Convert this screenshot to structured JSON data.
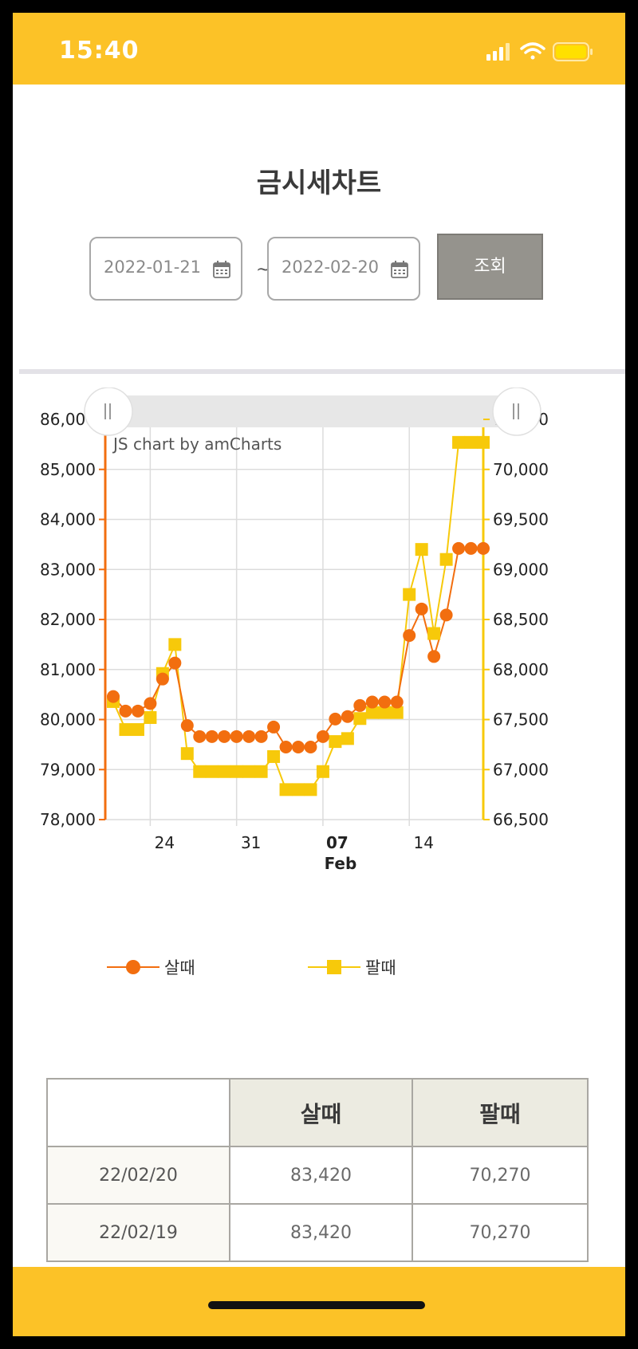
{
  "status_bar": {
    "time": "15:40"
  },
  "page_title": "금시세차트",
  "filter": {
    "start_date": "2022-01-21",
    "end_date": "2022-02-20",
    "separator": "~",
    "query_label": "조회"
  },
  "chart_credit": "JS chart by amCharts",
  "colors": {
    "accent": "#fcc227",
    "buy": "#f26e0f",
    "sell": "#f7c90a",
    "button": "#95938d"
  },
  "chart_data": {
    "type": "line",
    "x": [
      "2022-01-21",
      "2022-01-22",
      "2022-01-23",
      "2022-01-24",
      "2022-01-25",
      "2022-01-26",
      "2022-01-27",
      "2022-01-28",
      "2022-01-29",
      "2022-01-30",
      "2022-01-31",
      "2022-02-01",
      "2022-02-02",
      "2022-02-03",
      "2022-02-04",
      "2022-02-05",
      "2022-02-06",
      "2022-02-07",
      "2022-02-08",
      "2022-02-09",
      "2022-02-10",
      "2022-02-11",
      "2022-02-12",
      "2022-02-13",
      "2022-02-14",
      "2022-02-15",
      "2022-02-16",
      "2022-02-17",
      "2022-02-18",
      "2022-02-19",
      "2022-02-20"
    ],
    "x_tick_labels": [
      {
        "date": "2022-01-24",
        "label": "24"
      },
      {
        "date": "2022-01-31",
        "label": "31"
      },
      {
        "date": "2022-02-07",
        "label": "07",
        "sub": "Feb"
      },
      {
        "date": "2022-02-14",
        "label": "14"
      }
    ],
    "series": [
      {
        "name": "살때",
        "axis": "left",
        "marker": "circle",
        "values": [
          80460,
          80170,
          80170,
          80320,
          80810,
          81130,
          79880,
          79660,
          79660,
          79660,
          79660,
          79660,
          79660,
          79850,
          79450,
          79450,
          79450,
          79660,
          80010,
          80060,
          80280,
          80350,
          80350,
          80350,
          81680,
          82210,
          81260,
          82090,
          83420,
          83420,
          83420
        ]
      },
      {
        "name": "팔때",
        "axis": "right",
        "marker": "square",
        "values": [
          67680,
          67400,
          67400,
          67520,
          67960,
          68250,
          67160,
          66980,
          66980,
          66980,
          66980,
          66980,
          66980,
          67130,
          66800,
          66800,
          66800,
          66980,
          67280,
          67310,
          67510,
          67570,
          67570,
          67570,
          68750,
          69200,
          68360,
          69100,
          70270,
          70270,
          70270
        ]
      }
    ],
    "y_left": {
      "min": 78000,
      "max": 86000,
      "ticks": [
        "78,000",
        "79,000",
        "80,000",
        "81,000",
        "82,000",
        "83,000",
        "84,000",
        "85,000",
        "86,000"
      ]
    },
    "y_right": {
      "min": 66500,
      "max": 70500,
      "ticks": [
        "66,500",
        "67,000",
        "67,500",
        "68,000",
        "68,500",
        "69,000",
        "69,500",
        "70,000",
        "70,500"
      ]
    },
    "grid": true,
    "legend": "bottom-left"
  },
  "legend": {
    "buy_label": "살때",
    "sell_label": "팔때"
  },
  "table": {
    "headers": [
      "",
      "살때",
      "팔때"
    ],
    "rows": [
      {
        "date": "22/02/20",
        "buy": "83,420",
        "sell": "70,270"
      },
      {
        "date": "22/02/19",
        "buy": "83,420",
        "sell": "70,270"
      }
    ]
  }
}
